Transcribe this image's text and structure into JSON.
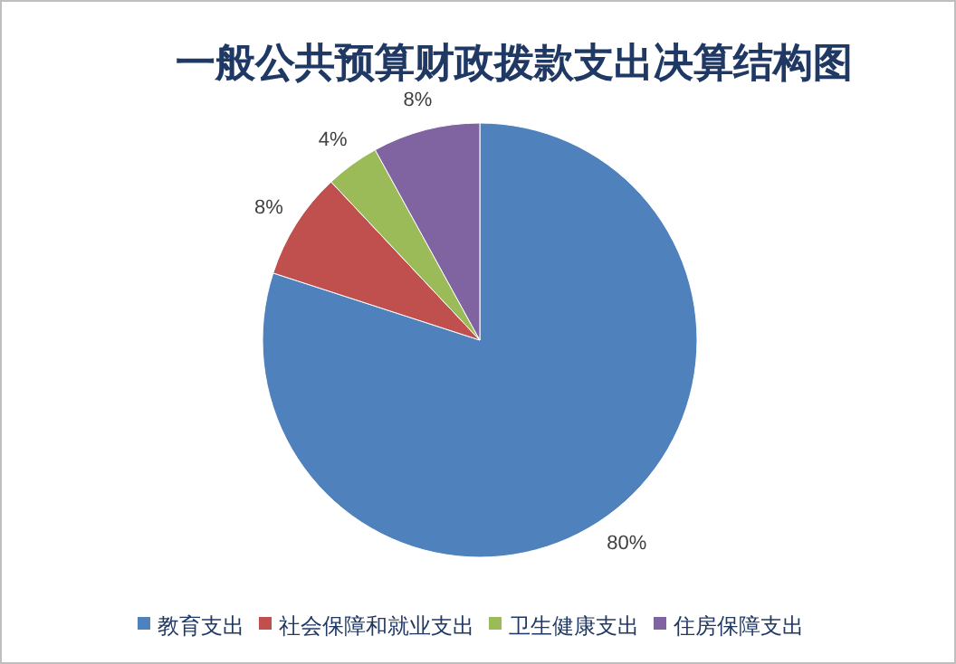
{
  "chart_data": {
    "type": "pie",
    "title": "一般公共预算财政拨款支出决算结构图",
    "categories": [
      "教育支出",
      "社会保障和就业支出",
      "卫生健康支出",
      "住房保障支出"
    ],
    "values": [
      80,
      8,
      4,
      8
    ],
    "value_labels": [
      "80%",
      "8%",
      "4%",
      "8%"
    ],
    "colors": [
      "#4f81bd",
      "#c0504d",
      "#9bbb59",
      "#8064a2"
    ],
    "legend": "bottom"
  }
}
